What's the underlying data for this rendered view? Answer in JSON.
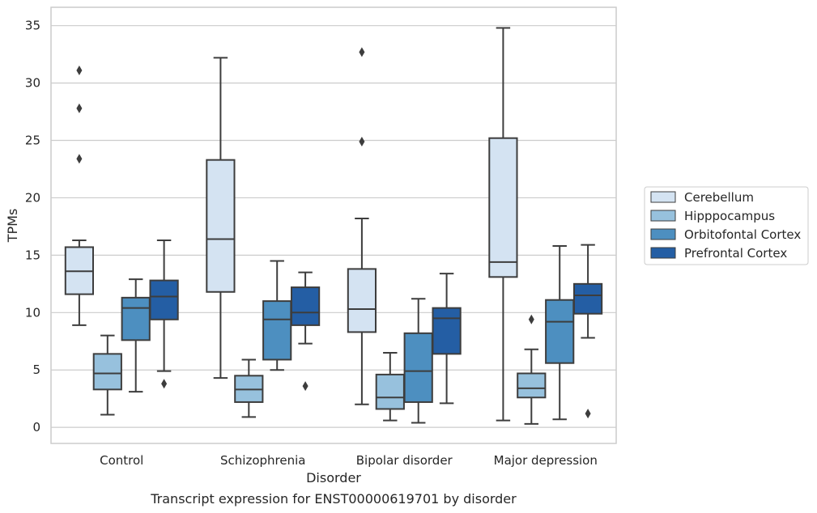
{
  "caption": "Transcript expression for ENST00000619701 by disorder",
  "colors": {
    "Cerebellum": "#d4e3f2",
    "Hipppocampus": "#97c1dd",
    "Orbitofontal Cortex": "#4d8fc0",
    "Prefrontal Cortex": "#245ea4",
    "edge": "#3d3d3d",
    "grid": "#cccccc",
    "frame": "#cccccc"
  },
  "chart_data": {
    "type": "box",
    "xlabel": "Disorder",
    "ylabel": "TPMs",
    "ylim": [
      -1.4,
      36.6
    ],
    "yticks": [
      0,
      5,
      10,
      15,
      20,
      25,
      30,
      35
    ],
    "grid": "horizontal",
    "legend_position": "right",
    "categories": [
      "Control",
      "Schizophrenia",
      "Bipolar disorder",
      "Major depression"
    ],
    "series": [
      {
        "name": "Cerebellum",
        "boxes": [
          {
            "whisker_low": 8.9,
            "q1": 11.6,
            "median": 13.6,
            "q3": 15.7,
            "whisker_high": 16.3,
            "outliers": [
              23.4,
              27.8,
              31.1
            ]
          },
          {
            "whisker_low": 4.3,
            "q1": 11.8,
            "median": 16.4,
            "q3": 23.3,
            "whisker_high": 32.2,
            "outliers": []
          },
          {
            "whisker_low": 2.0,
            "q1": 8.3,
            "median": 10.3,
            "q3": 13.8,
            "whisker_high": 18.2,
            "outliers": [
              24.9,
              32.7
            ]
          },
          {
            "whisker_low": 0.6,
            "q1": 13.1,
            "median": 14.4,
            "q3": 25.2,
            "whisker_high": 34.8,
            "outliers": []
          }
        ]
      },
      {
        "name": "Hipppocampus",
        "boxes": [
          {
            "whisker_low": 1.1,
            "q1": 3.3,
            "median": 4.7,
            "q3": 6.4,
            "whisker_high": 8.0,
            "outliers": []
          },
          {
            "whisker_low": 0.9,
            "q1": 2.2,
            "median": 3.3,
            "q3": 4.5,
            "whisker_high": 5.9,
            "outliers": []
          },
          {
            "whisker_low": 0.6,
            "q1": 1.6,
            "median": 2.6,
            "q3": 4.6,
            "whisker_high": 6.5,
            "outliers": []
          },
          {
            "whisker_low": 0.3,
            "q1": 2.6,
            "median": 3.4,
            "q3": 4.7,
            "whisker_high": 6.8,
            "outliers": [
              9.4
            ]
          }
        ]
      },
      {
        "name": "Orbitofontal Cortex",
        "boxes": [
          {
            "whisker_low": 3.1,
            "q1": 7.6,
            "median": 10.4,
            "q3": 11.3,
            "whisker_high": 12.9,
            "outliers": []
          },
          {
            "whisker_low": 5.0,
            "q1": 5.9,
            "median": 9.4,
            "q3": 11.0,
            "whisker_high": 14.5,
            "outliers": []
          },
          {
            "whisker_low": 0.4,
            "q1": 2.2,
            "median": 4.9,
            "q3": 8.2,
            "whisker_high": 11.2,
            "outliers": []
          },
          {
            "whisker_low": 0.7,
            "q1": 5.6,
            "median": 9.2,
            "q3": 11.1,
            "whisker_high": 15.8,
            "outliers": []
          }
        ]
      },
      {
        "name": "Prefrontal Cortex",
        "boxes": [
          {
            "whisker_low": 4.9,
            "q1": 9.4,
            "median": 11.4,
            "q3": 12.8,
            "whisker_high": 16.3,
            "outliers": [
              3.8
            ]
          },
          {
            "whisker_low": 7.3,
            "q1": 8.9,
            "median": 10.0,
            "q3": 12.2,
            "whisker_high": 13.5,
            "outliers": [
              3.6
            ]
          },
          {
            "whisker_low": 2.1,
            "q1": 6.4,
            "median": 9.5,
            "q3": 10.4,
            "whisker_high": 13.4,
            "outliers": []
          },
          {
            "whisker_low": 7.8,
            "q1": 9.9,
            "median": 11.5,
            "q3": 12.5,
            "whisker_high": 15.9,
            "outliers": [
              1.2
            ]
          }
        ]
      }
    ]
  }
}
